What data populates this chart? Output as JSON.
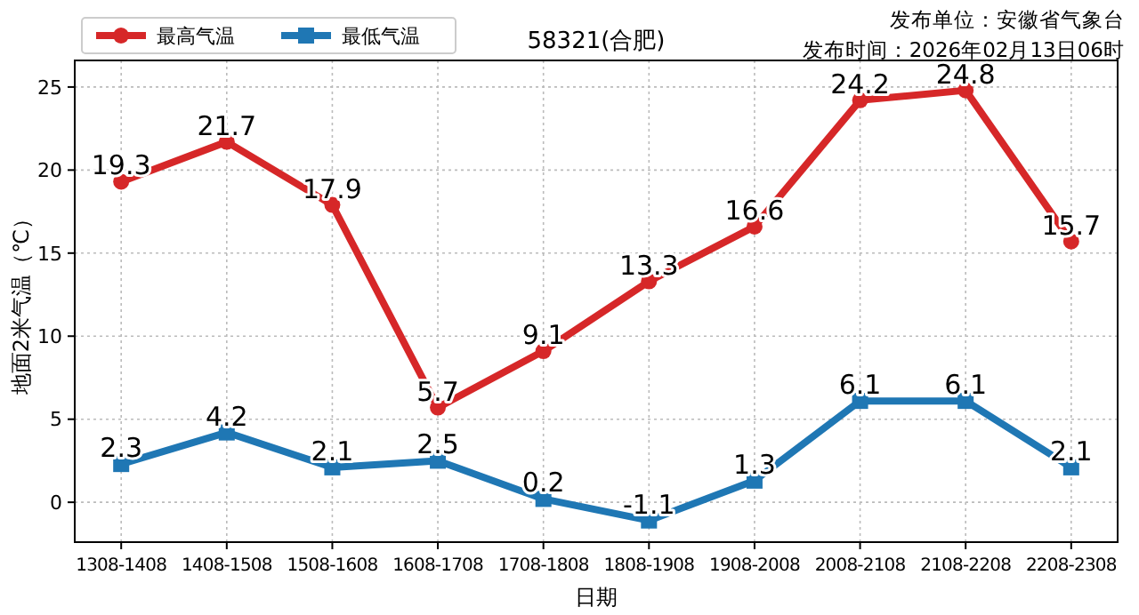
{
  "chart_data": {
    "type": "line",
    "title": "58321(合肥)",
    "xlabel": "日期",
    "ylabel": "地面2米气温（℃）",
    "annotations": [
      "发布单位：安徽省气象台",
      "发布时间：2026年02月13日06时"
    ],
    "categories": [
      "1308-1408",
      "1408-1508",
      "1508-1608",
      "1608-1708",
      "1708-1808",
      "1808-1908",
      "1908-2008",
      "2008-2108",
      "2108-2208",
      "2208-2308"
    ],
    "series": [
      {
        "name": "最高气温",
        "color": "#d62728",
        "marker": "circle",
        "values": [
          19.3,
          21.7,
          17.9,
          5.7,
          9.1,
          13.3,
          16.6,
          24.2,
          24.8,
          15.7
        ]
      },
      {
        "name": "最低气温",
        "color": "#1f77b4",
        "marker": "square",
        "values": [
          2.3,
          4.2,
          2.1,
          2.5,
          0.2,
          -1.1,
          1.3,
          6.1,
          6.1,
          2.1
        ]
      }
    ],
    "ylim": [
      -2.4,
      26.6
    ],
    "yticks": [
      0,
      5,
      10,
      15,
      20,
      25
    ],
    "grid": true,
    "legend": "top left",
    "data_labels": true,
    "line_style": "solid"
  }
}
